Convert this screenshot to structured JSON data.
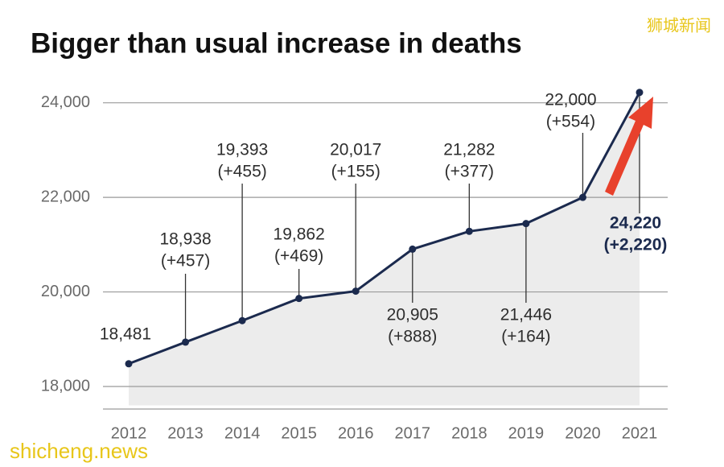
{
  "chart_data": {
    "type": "line",
    "title": "Bigger than usual increase in deaths",
    "categories": [
      "2012",
      "2013",
      "2014",
      "2015",
      "2016",
      "2017",
      "2018",
      "2019",
      "2020",
      "2021"
    ],
    "series": [
      {
        "name": "Deaths",
        "color": "#1b2a4e",
        "values": [
          18481,
          18938,
          19393,
          19862,
          20017,
          20905,
          21282,
          21446,
          22000,
          24220
        ],
        "value_labels": [
          "18,481",
          "18,938",
          "19,393",
          "19,862",
          "20,017",
          "20,905",
          "21,282",
          "21,446",
          "22,000",
          "24,220"
        ],
        "change_labels": [
          null,
          "(+457)",
          "(+455)",
          "(+469)",
          "(+155)",
          "(+888)",
          "(+377)",
          "(+164)",
          "(+554)",
          "(+2,220)"
        ]
      }
    ],
    "ylim": [
      17600,
      24700
    ],
    "yticks": [
      {
        "value": 18000,
        "label": "18,000"
      },
      {
        "value": 20000,
        "label": "20,000"
      },
      {
        "value": 22000,
        "label": "22,000"
      },
      {
        "value": 24000,
        "label": "24,000"
      }
    ],
    "grid": true,
    "area_color": "#ececec",
    "watermarks": [
      "狮城新闻",
      "shicheng.news"
    ]
  }
}
